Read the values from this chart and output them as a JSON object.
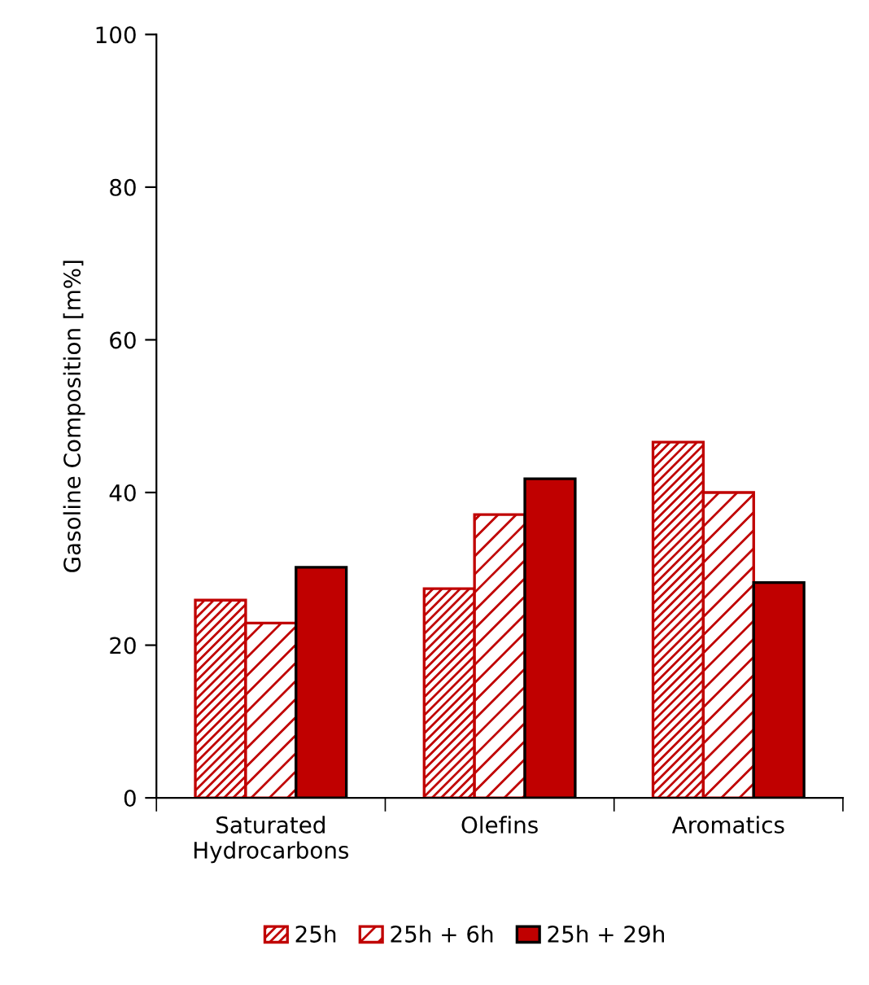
{
  "chart_data": {
    "type": "bar",
    "ylabel": "Gasoline Composition [m%]",
    "categories": [
      "Saturated\nHydrocarbons",
      "Olefins",
      "Aromatics"
    ],
    "series": [
      {
        "name": "25h",
        "color": "#c00000",
        "values": [
          25.9,
          27.4,
          46.6
        ]
      },
      {
        "name": "25h + 6h",
        "color": "#c00000",
        "values": [
          22.9,
          37.1,
          40.0
        ]
      },
      {
        "name": "25h + 29h",
        "color": "#c00000",
        "values": [
          30.2,
          41.8,
          28.2
        ]
      }
    ],
    "ylim": [
      0,
      100
    ],
    "yticks": [
      0,
      20,
      40,
      60,
      80,
      100
    ],
    "grid": false,
    "legend": "bottom"
  }
}
